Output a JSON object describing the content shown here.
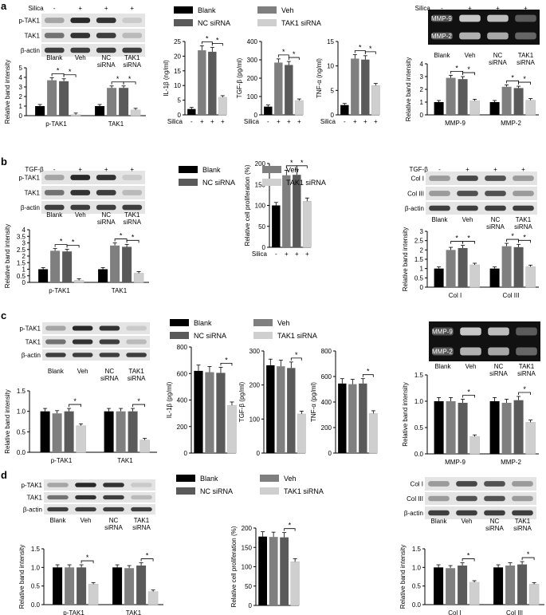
{
  "panel_letters": [
    "a",
    "b",
    "c",
    "d"
  ],
  "colors": {
    "blank": "#000000",
    "veh": "#7f7f7f",
    "nc": "#5a5a5a",
    "tak1": "#cfcfcf"
  },
  "treat_row": {
    "a_silica": [
      "-",
      "+",
      "+",
      "+"
    ],
    "b_tgf": [
      "-",
      "+",
      "+",
      "+"
    ]
  },
  "legend": {
    "blank": "Blank",
    "veh": "Veh",
    "nc": "NC siRNA",
    "tak1": "TAK1 siRNA"
  },
  "chart_data": [
    {
      "id": "a1",
      "type": "bar",
      "categories": [
        "p-TAK1",
        "TAK1"
      ],
      "ylabel": "Relative band intensity",
      "ylim": [
        0,
        5
      ],
      "yticks": [
        0,
        1,
        2,
        3,
        4,
        5
      ],
      "series": [
        {
          "name": "Blank",
          "values": [
            1.0,
            1.0
          ]
        },
        {
          "name": "Veh",
          "values": [
            3.7,
            2.9
          ]
        },
        {
          "name": "NC siRNA",
          "values": [
            3.6,
            2.9
          ]
        },
        {
          "name": "TAK1 siRNA",
          "values": [
            0.1,
            0.6
          ]
        }
      ],
      "sig": [
        [
          0,
          1,
          2
        ],
        [
          0,
          2,
          3
        ],
        [
          1,
          1,
          2
        ],
        [
          1,
          2,
          3
        ]
      ]
    },
    {
      "id": "a2",
      "type": "bar",
      "ylabel": "IL-1β (ng/ml)",
      "ylim": [
        0,
        25
      ],
      "yticks": [
        0,
        5,
        10,
        15,
        20,
        25
      ],
      "xrow_label": "Silica",
      "xrow": [
        "-",
        "+",
        "+",
        "+"
      ],
      "series": [
        {
          "name": "Blank",
          "values": [
            2
          ]
        },
        {
          "name": "Veh",
          "values": [
            22
          ]
        },
        {
          "name": "NC siRNA",
          "values": [
            21.5
          ]
        },
        {
          "name": "TAK1 siRNA",
          "values": [
            6
          ]
        }
      ],
      "sig": [
        [
          0,
          1,
          2
        ],
        [
          0,
          2,
          3
        ]
      ]
    },
    {
      "id": "a3",
      "type": "bar",
      "ylabel": "TGF-β (pg/ml)",
      "ylim": [
        0,
        400
      ],
      "yticks": [
        0,
        100,
        200,
        300,
        400
      ],
      "xrow_label": "Silica",
      "xrow": [
        "-",
        "+",
        "+",
        "+"
      ],
      "series": [
        {
          "name": "Blank",
          "values": [
            45
          ]
        },
        {
          "name": "Veh",
          "values": [
            285
          ]
        },
        {
          "name": "NC siRNA",
          "values": [
            272
          ]
        },
        {
          "name": "TAK1 siRNA",
          "values": [
            78
          ]
        }
      ],
      "sig": [
        [
          0,
          1,
          2
        ],
        [
          0,
          2,
          3
        ]
      ]
    },
    {
      "id": "a4",
      "type": "bar",
      "ylabel": "TNF-α (ng/ml)",
      "ylim": [
        0,
        15
      ],
      "yticks": [
        0,
        5,
        10,
        15
      ],
      "xrow_label": "Silica",
      "xrow": [
        "-",
        "+",
        "+",
        "+"
      ],
      "series": [
        {
          "name": "Blank",
          "values": [
            2
          ]
        },
        {
          "name": "Veh",
          "values": [
            11.5
          ]
        },
        {
          "name": "NC siRNA",
          "values": [
            11.3
          ]
        },
        {
          "name": "TAK1 siRNA",
          "values": [
            6
          ]
        }
      ],
      "sig": [
        [
          0,
          1,
          2
        ],
        [
          0,
          2,
          3
        ]
      ]
    },
    {
      "id": "a5",
      "type": "bar",
      "categories": [
        "MMP-9",
        "MMP-2"
      ],
      "ylabel": "Relative band intensity",
      "ylim": [
        0,
        4
      ],
      "yticks": [
        0,
        1,
        2,
        3,
        4
      ],
      "series": [
        {
          "name": "Blank",
          "values": [
            1.0,
            1.0
          ]
        },
        {
          "name": "Veh",
          "values": [
            2.9,
            2.2
          ]
        },
        {
          "name": "NC siRNA",
          "values": [
            2.8,
            2.1
          ]
        },
        {
          "name": "TAK1 siRNA",
          "values": [
            1.1,
            1.15
          ]
        }
      ],
      "sig": [
        [
          0,
          1,
          2
        ],
        [
          0,
          2,
          3
        ],
        [
          1,
          1,
          2
        ],
        [
          1,
          2,
          3
        ]
      ]
    },
    {
      "id": "b1",
      "type": "bar",
      "categories": [
        "p-TAK1",
        "TAK1"
      ],
      "ylabel": "Relative band intensity",
      "ylim": [
        0,
        4
      ],
      "yticks": [
        0,
        0.5,
        1,
        1.5,
        2,
        2.5,
        3,
        3.5,
        4
      ],
      "series": [
        {
          "name": "Blank",
          "values": [
            1.0,
            1.0
          ]
        },
        {
          "name": "Veh",
          "values": [
            2.4,
            2.8
          ]
        },
        {
          "name": "NC siRNA",
          "values": [
            2.35,
            2.7
          ]
        },
        {
          "name": "TAK1 siRNA",
          "values": [
            0.15,
            0.7
          ]
        }
      ],
      "sig": [
        [
          0,
          1,
          2
        ],
        [
          0,
          2,
          3
        ],
        [
          1,
          1,
          2
        ],
        [
          1,
          2,
          3
        ]
      ]
    },
    {
      "id": "b2",
      "type": "bar",
      "ylabel": "Relative cell proliferation (%)",
      "ylim": [
        0,
        200
      ],
      "yticks": [
        0,
        50,
        100,
        150,
        200
      ],
      "xrow_label": "Silica",
      "xrow": [
        "-",
        "+",
        "+",
        "+"
      ],
      "series": [
        {
          "name": "Blank",
          "values": [
            100
          ]
        },
        {
          "name": "Veh",
          "values": [
            172
          ]
        },
        {
          "name": "NC siRNA",
          "values": [
            173
          ]
        },
        {
          "name": "TAK1 siRNA",
          "values": [
            110
          ]
        }
      ],
      "sig": [
        [
          0,
          1,
          2
        ],
        [
          0,
          2,
          3
        ]
      ]
    },
    {
      "id": "b3",
      "type": "bar",
      "categories": [
        "Col I",
        "Col III"
      ],
      "ylabel": "Relative band intensity",
      "ylim": [
        0,
        3
      ],
      "yticks": [
        0,
        0.5,
        1,
        1.5,
        2,
        2.5,
        3
      ],
      "series": [
        {
          "name": "Blank",
          "values": [
            1.0,
            1.0
          ]
        },
        {
          "name": "Veh",
          "values": [
            2.0,
            2.2
          ]
        },
        {
          "name": "NC siRNA",
          "values": [
            2.1,
            2.15
          ]
        },
        {
          "name": "TAK1 siRNA",
          "values": [
            1.2,
            1.1
          ]
        }
      ],
      "sig": [
        [
          0,
          1,
          2
        ],
        [
          0,
          2,
          3
        ],
        [
          1,
          1,
          2
        ],
        [
          1,
          2,
          3
        ]
      ]
    },
    {
      "id": "c1",
      "type": "bar",
      "categories": [
        "p-TAK1",
        "TAK1"
      ],
      "ylabel": "Relative band intensity",
      "ylim": [
        0,
        1.5
      ],
      "yticks": [
        0,
        0.5,
        1.0,
        1.5
      ],
      "tickfmt": 1,
      "series": [
        {
          "name": "Blank",
          "values": [
            1.0,
            1.0
          ]
        },
        {
          "name": "Veh",
          "values": [
            0.95,
            1.0
          ]
        },
        {
          "name": "NC siRNA",
          "values": [
            1.0,
            1.0
          ]
        },
        {
          "name": "TAK1 siRNA",
          "values": [
            0.65,
            0.3
          ]
        }
      ],
      "sig": [
        [
          0,
          2,
          3
        ],
        [
          1,
          2,
          3
        ]
      ]
    },
    {
      "id": "c2",
      "type": "bar",
      "ylabel": "IL-1β (pg/ml)",
      "ylim": [
        0,
        800
      ],
      "yticks": [
        0,
        200,
        400,
        600,
        800
      ],
      "series": [
        {
          "name": "Blank",
          "values": [
            620
          ]
        },
        {
          "name": "Veh",
          "values": [
            610
          ]
        },
        {
          "name": "NC siRNA",
          "values": [
            605
          ]
        },
        {
          "name": "TAK1 siRNA",
          "values": [
            360
          ]
        }
      ],
      "sig": [
        [
          0,
          2,
          3
        ]
      ]
    },
    {
      "id": "c3",
      "type": "bar",
      "ylabel": "TGF-β (pg/ml)",
      "ylim": [
        0,
        300
      ],
      "yticks": [
        0,
        100,
        200,
        300
      ],
      "series": [
        {
          "name": "Blank",
          "values": [
            258
          ]
        },
        {
          "name": "Veh",
          "values": [
            255
          ]
        },
        {
          "name": "NC siRNA",
          "values": [
            250
          ]
        },
        {
          "name": "TAK1 siRNA",
          "values": [
            115
          ]
        }
      ],
      "sig": [
        [
          0,
          2,
          3
        ]
      ]
    },
    {
      "id": "c4",
      "type": "bar",
      "ylabel": "TNF-α (pg/ml)",
      "ylim": [
        0,
        800
      ],
      "yticks": [
        0,
        200,
        400,
        600,
        800
      ],
      "series": [
        {
          "name": "Blank",
          "values": [
            545
          ]
        },
        {
          "name": "Veh",
          "values": [
            540
          ]
        },
        {
          "name": "NC siRNA",
          "values": [
            545
          ]
        },
        {
          "name": "TAK1 siRNA",
          "values": [
            310
          ]
        }
      ],
      "sig": [
        [
          0,
          2,
          3
        ]
      ]
    },
    {
      "id": "c5",
      "type": "bar",
      "categories": [
        "MMP-9",
        "MMP-2"
      ],
      "ylabel": "Relative band intensity",
      "ylim": [
        0,
        1.5
      ],
      "yticks": [
        0,
        0.5,
        1.0,
        1.5
      ],
      "tickfmt": 1,
      "series": [
        {
          "name": "Blank",
          "values": [
            1.0,
            1.0
          ]
        },
        {
          "name": "Veh",
          "values": [
            1.0,
            0.97
          ]
        },
        {
          "name": "NC siRNA",
          "values": [
            0.97,
            1.02
          ]
        },
        {
          "name": "TAK1 siRNA",
          "values": [
            0.33,
            0.6
          ]
        }
      ],
      "sig": [
        [
          0,
          2,
          3
        ],
        [
          1,
          2,
          3
        ]
      ]
    },
    {
      "id": "d1",
      "type": "bar",
      "categories": [
        "p-TAK1",
        "TAK1"
      ],
      "ylabel": "Relative band intensity",
      "ylim": [
        0,
        1.5
      ],
      "yticks": [
        0,
        0.5,
        1.0,
        1.5
      ],
      "tickfmt": 1,
      "series": [
        {
          "name": "Blank",
          "values": [
            1.0,
            1.0
          ]
        },
        {
          "name": "Veh",
          "values": [
            1.0,
            0.98
          ]
        },
        {
          "name": "NC siRNA",
          "values": [
            1.0,
            1.05
          ]
        },
        {
          "name": "TAK1 siRNA",
          "values": [
            0.55,
            0.35
          ]
        }
      ],
      "sig": [
        [
          0,
          2,
          3
        ],
        [
          1,
          2,
          3
        ]
      ]
    },
    {
      "id": "d2",
      "type": "bar",
      "ylabel": "Relative cell proliferation (%)",
      "ylim": [
        0,
        200
      ],
      "yticks": [
        0,
        50,
        100,
        150,
        200
      ],
      "series": [
        {
          "name": "Blank",
          "values": [
            178
          ]
        },
        {
          "name": "Veh",
          "values": [
            177
          ]
        },
        {
          "name": "NC siRNA",
          "values": [
            176
          ]
        },
        {
          "name": "TAK1 siRNA",
          "values": [
            113
          ]
        }
      ],
      "sig": [
        [
          0,
          2,
          3
        ]
      ]
    },
    {
      "id": "d3",
      "type": "bar",
      "categories": [
        "Col I",
        "Col III"
      ],
      "ylabel": "Relative band intensity",
      "ylim": [
        0,
        1.5
      ],
      "yticks": [
        0,
        0.5,
        1.0,
        1.5
      ],
      "tickfmt": 1,
      "series": [
        {
          "name": "Blank",
          "values": [
            1.0,
            1.0
          ]
        },
        {
          "name": "Veh",
          "values": [
            0.98,
            1.05
          ]
        },
        {
          "name": "NC siRNA",
          "values": [
            1.05,
            1.08
          ]
        },
        {
          "name": "TAK1 siRNA",
          "values": [
            0.6,
            0.55
          ]
        }
      ],
      "sig": [
        [
          0,
          2,
          3
        ],
        [
          1,
          2,
          3
        ]
      ]
    }
  ],
  "blots": [
    {
      "id": "ba1",
      "lanes": [
        "Blank",
        "Veh",
        "NC\nsiRNA",
        "TAK1\nsiRNA"
      ],
      "treat_label": "Silica",
      "treat": [
        "-",
        "+",
        "+",
        "+"
      ],
      "bands": [
        "p-TAK1",
        "TAK1",
        "β-actin"
      ],
      "dark": false
    },
    {
      "id": "ba5",
      "lanes": [
        "Blank",
        "Veh",
        "NC\nsiRNA",
        "TAK1\nsiRNA"
      ],
      "treat_label": "Silica",
      "treat": [
        "-",
        "+",
        "+",
        "+"
      ],
      "bands": [
        "MMP-9",
        "MMP-2"
      ],
      "dark": true
    },
    {
      "id": "bb1",
      "lanes": [
        "Blank",
        "Veh",
        "NC\nsiRNA",
        "TAK1\nsiRNA"
      ],
      "treat_label": "TGF-β",
      "treat": [
        "-",
        "+",
        "+",
        "+"
      ],
      "bands": [
        "p-TAK1",
        "TAK1",
        "β-actin"
      ],
      "dark": false
    },
    {
      "id": "bb3",
      "lanes": [
        "Blank",
        "Veh",
        "NC\nsiRNA",
        "TAK1\nsiRNA"
      ],
      "treat_label": "TGF-β",
      "treat": [
        "-",
        "+",
        "+",
        "+"
      ],
      "bands": [
        "Col I",
        "Col III",
        "β-actin"
      ],
      "dark": false
    },
    {
      "id": "bc1",
      "lanes": [
        "Blank",
        "Veh",
        "NC\nsiRNA",
        "TAK1\nsiRNA"
      ],
      "bands": [
        "p-TAK1",
        "TAK1",
        "β-actin"
      ],
      "dark": false
    },
    {
      "id": "bc5",
      "lanes": [
        "Blank",
        "Veh",
        "NC\nsiRNA",
        "TAK1\nsiRNA"
      ],
      "bands": [
        "MMP-9",
        "MMP-2"
      ],
      "dark": true
    },
    {
      "id": "bd1",
      "lanes": [
        "Blank",
        "Veh",
        "NC\nsiRNA",
        "TAK1\nsiRNA"
      ],
      "bands": [
        "p-TAK1",
        "TAK1",
        "β-actin"
      ],
      "dark": false
    },
    {
      "id": "bd3",
      "lanes": [
        "Blank",
        "Veh",
        "NC\nsiRNA",
        "TAK1\nsiRNA"
      ],
      "bands": [
        "Col I",
        "Col III",
        "β-actin"
      ],
      "dark": false
    }
  ],
  "sig_mark": "*"
}
